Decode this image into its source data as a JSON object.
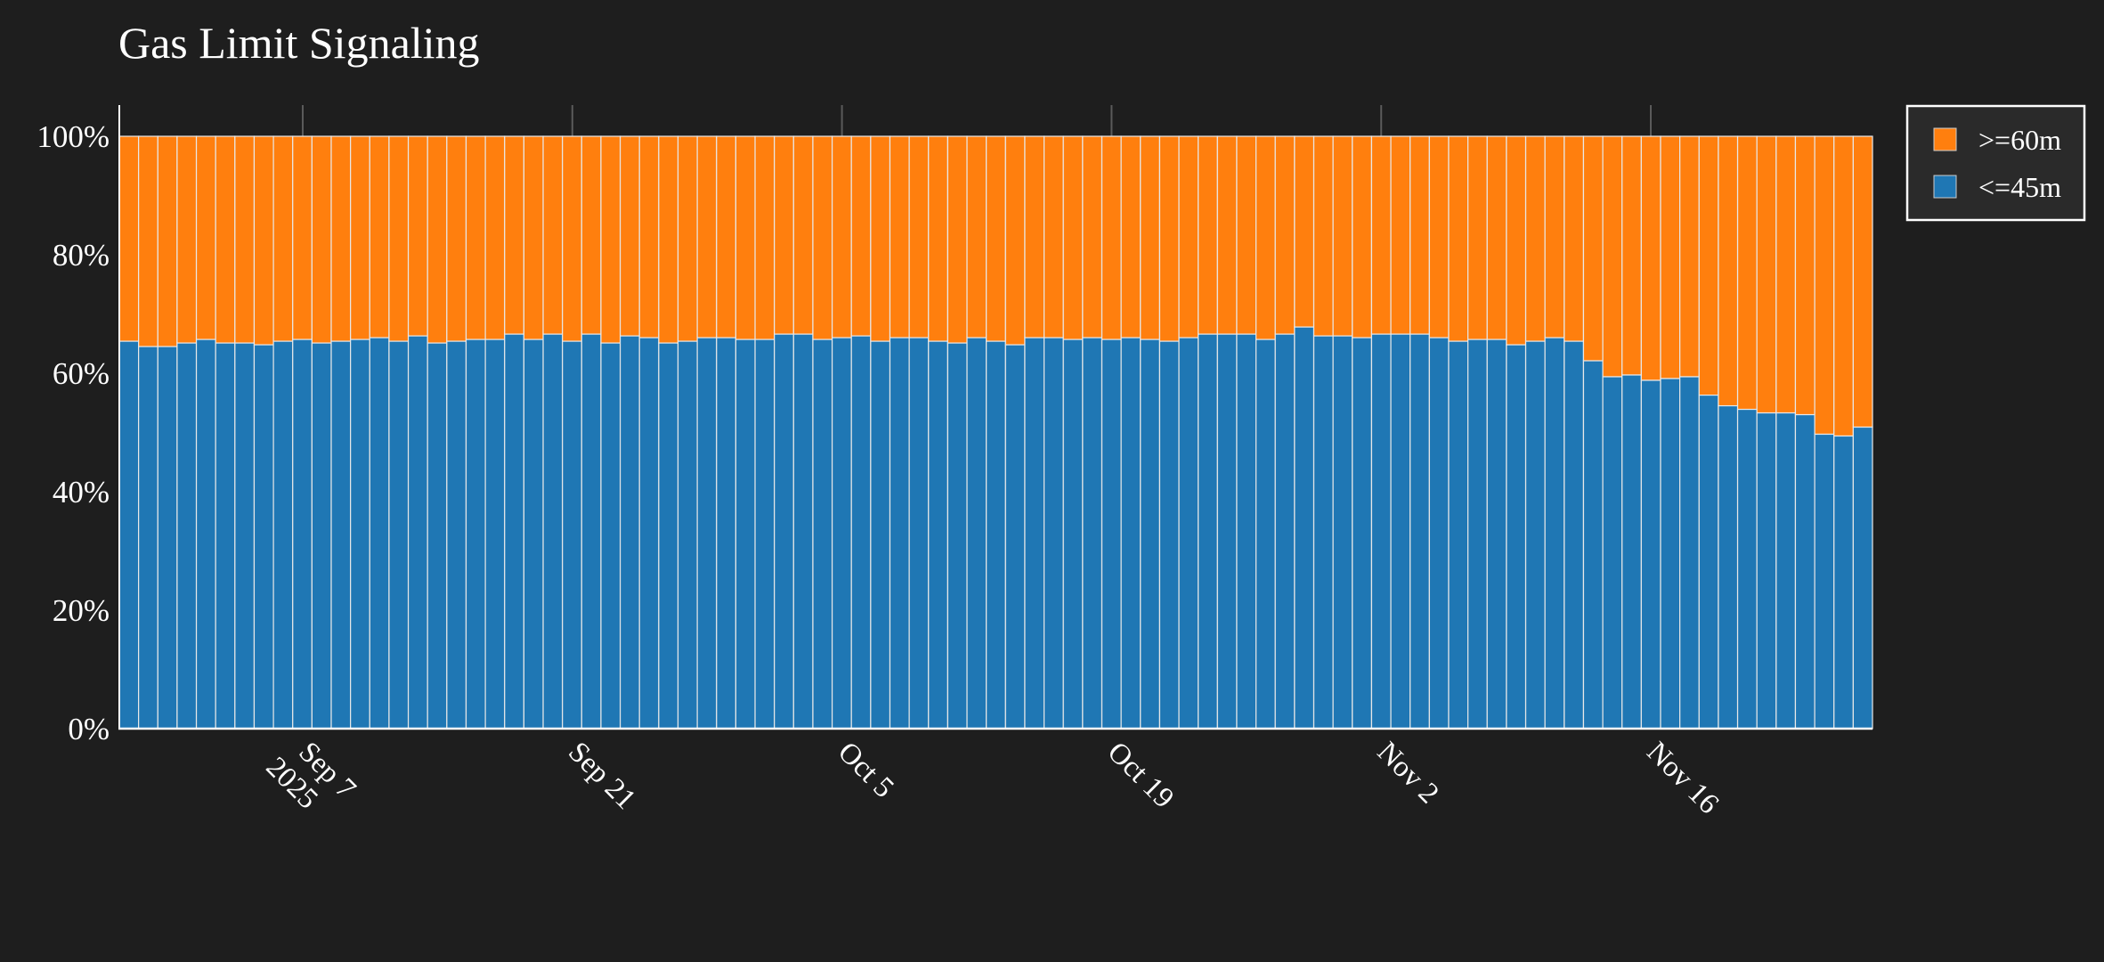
{
  "title": "Gas Limit Signaling",
  "colors": {
    "background": "#1e1e1e",
    "legend_bg": "#2a2a2a",
    "series_high": "#ff7f0e",
    "series_low": "#1f77b4",
    "bar_outline": "#e8e8e8",
    "grid": "#5a5a5a",
    "axis": "#ffffff"
  },
  "legend": {
    "items": [
      {
        "label": ">=60m",
        "color": "#ff7f0e"
      },
      {
        "label": "<=45m",
        "color": "#1f77b4"
      }
    ]
  },
  "chart_data": {
    "type": "bar",
    "stacked": true,
    "normalized": "percent",
    "title": "Gas Limit Signaling",
    "xlabel": "",
    "ylabel": "",
    "ylim": [
      0,
      100
    ],
    "y_ticks": [
      "0%",
      "20%",
      "40%",
      "60%",
      "80%",
      "100%"
    ],
    "x_ticks": [
      {
        "label": "Sep 7",
        "sublabel": "2025"
      },
      {
        "label": "Sep 21",
        "sublabel": ""
      },
      {
        "label": "Oct 5",
        "sublabel": ""
      },
      {
        "label": "Oct 19",
        "sublabel": ""
      },
      {
        "label": "Nov 2",
        "sublabel": ""
      },
      {
        "label": "Nov 16",
        "sublabel": ""
      }
    ],
    "x_range": "daily, ~Aug 28 2025 to ~Nov 26 2025 (91 days)",
    "grid": true,
    "legend_position": "top-right, outside plot",
    "series": [
      {
        "name": "<=45m",
        "color": "#1f77b4",
        "values": [
          65.4,
          64.5,
          64.5,
          65.1,
          65.7,
          65.1,
          65.1,
          64.8,
          65.4,
          65.7,
          65.1,
          65.4,
          65.7,
          66.0,
          65.4,
          66.3,
          65.1,
          65.4,
          65.7,
          65.7,
          66.6,
          65.7,
          66.6,
          65.4,
          66.6,
          65.1,
          66.3,
          66.0,
          65.1,
          65.4,
          66.0,
          66.0,
          65.7,
          65.7,
          66.6,
          66.6,
          65.7,
          66.0,
          66.3,
          65.4,
          66.0,
          66.0,
          65.4,
          65.1,
          66.0,
          65.4,
          64.8,
          66.0,
          66.0,
          65.7,
          66.0,
          65.7,
          66.0,
          65.7,
          65.4,
          66.0,
          66.6,
          66.6,
          66.6,
          65.7,
          66.6,
          67.8,
          66.3,
          66.3,
          66.0,
          66.6,
          66.6,
          66.6,
          66.0,
          65.4,
          65.7,
          65.7,
          64.8,
          65.4,
          66.0,
          65.4,
          62.1,
          59.4,
          59.7,
          58.8,
          59.1,
          59.4,
          56.3,
          54.5,
          53.9,
          53.3,
          53.3,
          53.0,
          49.7,
          49.4,
          50.9
        ]
      },
      {
        "name": ">=60m",
        "color": "#ff7f0e",
        "values": "remainder to 100% for each bar (100 - <=45m)"
      }
    ]
  }
}
